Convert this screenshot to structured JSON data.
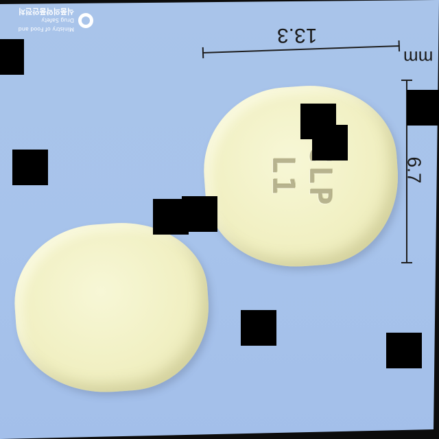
{
  "image": {
    "width_label": "13.3",
    "height_label": "6.7",
    "unit": "mm",
    "imprint_lines": [
      "CLP",
      "L1"
    ],
    "logo": {
      "line1": "Ministry of Food and Drug Safety",
      "line2": "식품의약품안전처"
    },
    "colors": {
      "background": "#a9c4ea",
      "tablet": "#f1f0c3",
      "redaction": "#000000"
    }
  }
}
